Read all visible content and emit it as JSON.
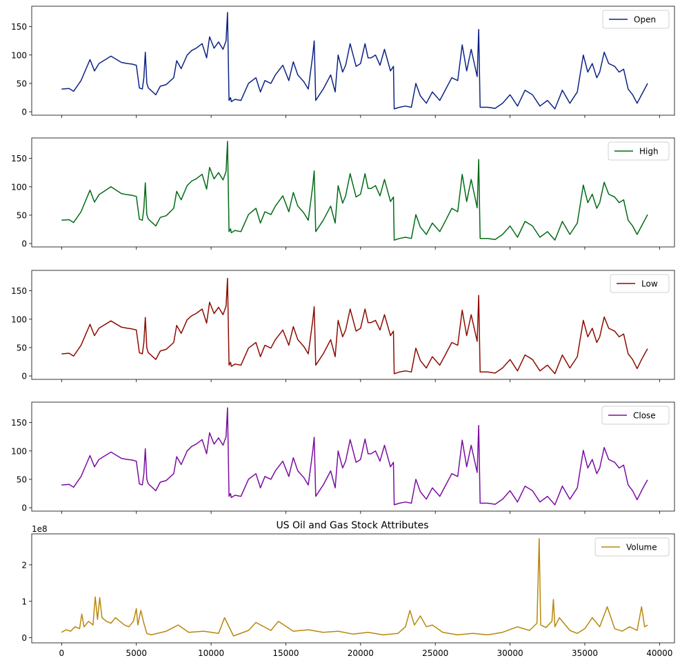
{
  "title": "US Oil and Gas Stock Attributes",
  "x_ticks": [
    0,
    5000,
    10000,
    15000,
    20000,
    25000,
    30000,
    35000,
    40000
  ],
  "volume_exponent_label": "1e8",
  "chart_data": [
    {
      "type": "line",
      "series": [
        {
          "name": "Open",
          "color": "#0b2283"
        }
      ],
      "xlim": [
        -2000,
        41000
      ],
      "ylim": [
        -6,
        186
      ],
      "y_ticks": [
        0,
        50,
        100,
        150
      ],
      "legend_position": "upper-right",
      "x_ticklabels_visible": false,
      "x": [
        0,
        500,
        800,
        1300,
        1900,
        2200,
        2500,
        3300,
        4000,
        4400,
        4700,
        5000,
        5200,
        5400,
        5500,
        5600,
        5700,
        5800,
        6300,
        6600,
        7000,
        7500,
        7700,
        8000,
        8400,
        8700,
        9000,
        9400,
        9700,
        9900,
        10200,
        10500,
        10800,
        11000,
        11100,
        11200,
        11300,
        11350,
        11600,
        12000,
        12500,
        13000,
        13300,
        13600,
        14000,
        14300,
        14800,
        15200,
        15500,
        15800,
        16200,
        16500,
        16800,
        16900,
        17000,
        17500,
        18000,
        18300,
        18500,
        18800,
        19000,
        19300,
        19700,
        20000,
        20300,
        20500,
        20700,
        21000,
        21300,
        21600,
        22000,
        22200,
        22250,
        22600,
        23000,
        23400,
        23700,
        24000,
        24400,
        24800,
        25300,
        25700,
        26100,
        26500,
        26800,
        27100,
        27400,
        27800,
        27900,
        28000,
        28500,
        29000,
        29500,
        30000,
        30500,
        31000,
        31500,
        32000,
        32500,
        33000,
        33500,
        34000,
        34500,
        34900,
        35200,
        35500,
        35800,
        36000,
        36300,
        36600,
        37000,
        37300,
        37600,
        37900,
        38200,
        38500,
        38800,
        39000,
        39200
      ],
      "y": [
        40,
        41,
        36,
        55,
        92,
        72,
        85,
        98,
        87,
        85,
        84,
        82,
        42,
        40,
        60,
        105,
        50,
        42,
        30,
        45,
        48,
        60,
        90,
        76,
        100,
        108,
        112,
        120,
        95,
        132,
        112,
        123,
        110,
        125,
        175,
        20,
        25,
        18,
        22,
        20,
        50,
        60,
        35,
        55,
        50,
        65,
        82,
        55,
        88,
        65,
        53,
        40,
        100,
        125,
        20,
        40,
        65,
        35,
        100,
        70,
        82,
        120,
        80,
        85,
        120,
        95,
        95,
        100,
        82,
        110,
        72,
        80,
        5,
        8,
        10,
        8,
        50,
        28,
        15,
        35,
        20,
        40,
        60,
        55,
        118,
        72,
        110,
        62,
        145,
        8,
        8,
        6,
        15,
        30,
        10,
        38,
        30,
        10,
        20,
        5,
        38,
        15,
        35,
        100,
        70,
        85,
        60,
        70,
        105,
        85,
        80,
        70,
        75,
        40,
        30,
        15,
        30,
        40,
        50
      ]
    },
    {
      "type": "line",
      "series": [
        {
          "name": "High",
          "color": "#006a14"
        }
      ],
      "xlim": [
        -2000,
        41000
      ],
      "ylim": [
        -6,
        186
      ],
      "y_ticks": [
        0,
        50,
        100,
        150
      ],
      "legend_position": "upper-right",
      "x_ticklabels_visible": false,
      "x": [
        0,
        500,
        800,
        1300,
        1900,
        2200,
        2500,
        3300,
        4000,
        4400,
        4700,
        5000,
        5200,
        5400,
        5500,
        5600,
        5700,
        5800,
        6300,
        6600,
        7000,
        7500,
        7700,
        8000,
        8400,
        8700,
        9000,
        9400,
        9700,
        9900,
        10200,
        10500,
        10800,
        11000,
        11100,
        11200,
        11300,
        11350,
        11600,
        12000,
        12500,
        13000,
        13300,
        13600,
        14000,
        14300,
        14800,
        15200,
        15500,
        15800,
        16200,
        16500,
        16800,
        16900,
        17000,
        17500,
        18000,
        18300,
        18500,
        18800,
        19000,
        19300,
        19700,
        20000,
        20300,
        20500,
        20700,
        21000,
        21300,
        21600,
        22000,
        22200,
        22250,
        22600,
        23000,
        23400,
        23700,
        24000,
        24400,
        24800,
        25300,
        25700,
        26100,
        26500,
        26800,
        27100,
        27400,
        27800,
        27900,
        28000,
        28500,
        29000,
        29500,
        30000,
        30500,
        31000,
        31500,
        32000,
        32500,
        33000,
        33500,
        34000,
        34500,
        34900,
        35200,
        35500,
        35800,
        36000,
        36300,
        36600,
        37000,
        37300,
        37600,
        37900,
        38200,
        38500,
        38800,
        39000,
        39200
      ],
      "y": [
        41,
        42,
        37,
        56,
        94,
        73,
        86,
        100,
        88,
        86,
        85,
        83,
        43,
        41,
        62,
        107,
        51,
        43,
        31,
        46,
        49,
        62,
        92,
        77,
        102,
        110,
        114,
        122,
        96,
        134,
        114,
        125,
        112,
        127,
        180,
        21,
        26,
        19,
        23,
        21,
        51,
        62,
        36,
        56,
        51,
        66,
        84,
        56,
        90,
        66,
        54,
        41,
        102,
        128,
        21,
        41,
        66,
        36,
        102,
        71,
        84,
        123,
        82,
        87,
        123,
        97,
        97,
        102,
        84,
        113,
        74,
        82,
        6,
        9,
        11,
        9,
        51,
        29,
        16,
        36,
        21,
        41,
        62,
        56,
        122,
        74,
        113,
        63,
        148,
        9,
        9,
        7,
        16,
        31,
        11,
        39,
        31,
        11,
        21,
        6,
        39,
        16,
        36,
        103,
        72,
        87,
        62,
        72,
        108,
        87,
        82,
        72,
        77,
        41,
        31,
        16,
        31,
        41,
        51
      ]
    },
    {
      "type": "line",
      "series": [
        {
          "name": "Low",
          "color": "#8b0b00"
        }
      ],
      "xlim": [
        -2000,
        41000
      ],
      "ylim": [
        -6,
        186
      ],
      "y_ticks": [
        0,
        50,
        100,
        150
      ],
      "legend_position": "upper-right",
      "x_ticklabels_visible": false,
      "x": [
        0,
        500,
        800,
        1300,
        1900,
        2200,
        2500,
        3300,
        4000,
        4400,
        4700,
        5000,
        5200,
        5400,
        5500,
        5600,
        5700,
        5800,
        6300,
        6600,
        7000,
        7500,
        7700,
        8000,
        8400,
        8700,
        9000,
        9400,
        9700,
        9900,
        10200,
        10500,
        10800,
        11000,
        11100,
        11200,
        11300,
        11350,
        11600,
        12000,
        12500,
        13000,
        13300,
        13600,
        14000,
        14300,
        14800,
        15200,
        15500,
        15800,
        16200,
        16500,
        16800,
        16900,
        17000,
        17500,
        18000,
        18300,
        18500,
        18800,
        19000,
        19300,
        19700,
        20000,
        20300,
        20500,
        20700,
        21000,
        21300,
        21600,
        22000,
        22200,
        22250,
        22600,
        23000,
        23400,
        23700,
        24000,
        24400,
        24800,
        25300,
        25700,
        26100,
        26500,
        26800,
        27100,
        27400,
        27800,
        27900,
        28000,
        28500,
        29000,
        29500,
        30000,
        30500,
        31000,
        31500,
        32000,
        32500,
        33000,
        33500,
        34000,
        34500,
        34900,
        35200,
        35500,
        35800,
        36000,
        36300,
        36600,
        37000,
        37300,
        37600,
        37900,
        38200,
        38500,
        38800,
        39000,
        39200
      ],
      "y": [
        39,
        40,
        35,
        54,
        91,
        71,
        84,
        97,
        86,
        84,
        83,
        81,
        41,
        39,
        59,
        103,
        49,
        41,
        29,
        44,
        47,
        59,
        89,
        75,
        99,
        106,
        110,
        118,
        93,
        130,
        110,
        121,
        108,
        123,
        172,
        19,
        24,
        17,
        21,
        19,
        49,
        59,
        34,
        54,
        49,
        64,
        81,
        54,
        87,
        64,
        52,
        39,
        98,
        122,
        19,
        39,
        64,
        34,
        98,
        69,
        81,
        118,
        79,
        84,
        118,
        94,
        94,
        98,
        81,
        108,
        71,
        79,
        4,
        7,
        9,
        7,
        49,
        27,
        14,
        34,
        19,
        39,
        59,
        54,
        116,
        71,
        108,
        61,
        142,
        7,
        7,
        5,
        14,
        29,
        9,
        37,
        29,
        9,
        19,
        4,
        37,
        14,
        34,
        98,
        69,
        84,
        59,
        69,
        104,
        84,
        79,
        69,
        74,
        39,
        29,
        13,
        29,
        39,
        48
      ]
    },
    {
      "type": "line",
      "series": [
        {
          "name": "Close",
          "color": "#7a0ca0"
        }
      ],
      "xlim": [
        -2000,
        41000
      ],
      "ylim": [
        -6,
        186
      ],
      "y_ticks": [
        0,
        50,
        100,
        150
      ],
      "legend_position": "upper-right",
      "x_ticklabels_visible": false,
      "x": [
        0,
        500,
        800,
        1300,
        1900,
        2200,
        2500,
        3300,
        4000,
        4400,
        4700,
        5000,
        5200,
        5400,
        5500,
        5600,
        5700,
        5800,
        6300,
        6600,
        7000,
        7500,
        7700,
        8000,
        8400,
        8700,
        9000,
        9400,
        9700,
        9900,
        10200,
        10500,
        10800,
        11000,
        11100,
        11200,
        11300,
        11350,
        11600,
        12000,
        12500,
        13000,
        13300,
        13600,
        14000,
        14300,
        14800,
        15200,
        15500,
        15800,
        16200,
        16500,
        16800,
        16900,
        17000,
        17500,
        18000,
        18300,
        18500,
        18800,
        19000,
        19300,
        19700,
        20000,
        20300,
        20500,
        20700,
        21000,
        21300,
        21600,
        22000,
        22200,
        22250,
        22600,
        23000,
        23400,
        23700,
        24000,
        24400,
        24800,
        25300,
        25700,
        26100,
        26500,
        26800,
        27100,
        27400,
        27800,
        27900,
        28000,
        28500,
        29000,
        29500,
        30000,
        30500,
        31000,
        31500,
        32000,
        32500,
        33000,
        33500,
        34000,
        34500,
        34900,
        35200,
        35500,
        35800,
        36000,
        36300,
        36600,
        37000,
        37300,
        37600,
        37900,
        38200,
        38500,
        38800,
        39000,
        39200
      ],
      "y": [
        40,
        41,
        36,
        55,
        92,
        72,
        85,
        98,
        87,
        85,
        84,
        82,
        42,
        40,
        60,
        104,
        50,
        42,
        30,
        45,
        48,
        60,
        90,
        76,
        100,
        108,
        112,
        120,
        95,
        132,
        112,
        123,
        110,
        125,
        176,
        20,
        25,
        18,
        22,
        20,
        50,
        60,
        35,
        55,
        50,
        65,
        82,
        55,
        88,
        65,
        53,
        40,
        100,
        124,
        20,
        40,
        65,
        35,
        100,
        70,
        82,
        120,
        80,
        85,
        121,
        95,
        95,
        100,
        82,
        110,
        72,
        80,
        5,
        8,
        10,
        8,
        50,
        28,
        15,
        35,
        20,
        40,
        60,
        55,
        119,
        72,
        110,
        62,
        145,
        8,
        8,
        6,
        15,
        30,
        10,
        38,
        30,
        10,
        20,
        5,
        38,
        15,
        35,
        101,
        70,
        85,
        60,
        70,
        106,
        85,
        80,
        70,
        75,
        40,
        30,
        14,
        30,
        40,
        49
      ]
    },
    {
      "type": "line",
      "title": "US Oil and Gas Stock Attributes",
      "series": [
        {
          "name": "Volume",
          "color": "#b8860b"
        }
      ],
      "xlim": [
        -2000,
        41000
      ],
      "ylim": [
        -0.14,
        2.85
      ],
      "y_unit": "1e8",
      "y_ticks": [
        0,
        1,
        2
      ],
      "legend_position": "upper-right",
      "x_ticklabels_visible": true,
      "x": [
        0,
        300,
        600,
        900,
        1200,
        1350,
        1500,
        1800,
        2100,
        2250,
        2400,
        2550,
        2700,
        3000,
        3300,
        3600,
        3900,
        4200,
        4500,
        4800,
        5000,
        5100,
        5300,
        5500,
        5700,
        6000,
        7000,
        7800,
        8500,
        9500,
        10500,
        10900,
        11500,
        12500,
        13000,
        14000,
        14500,
        15500,
        16500,
        17500,
        18500,
        19500,
        20500,
        21500,
        22500,
        23000,
        23300,
        23600,
        24000,
        24400,
        24800,
        25500,
        26500,
        27500,
        28500,
        29500,
        30500,
        31300,
        31800,
        31950,
        32050,
        32400,
        32800,
        32900,
        33000,
        33300,
        34000,
        34500,
        35000,
        35500,
        36000,
        36500,
        37000,
        37500,
        38000,
        38500,
        38800,
        39000,
        39200
      ],
      "y": [
        0.15,
        0.22,
        0.18,
        0.3,
        0.25,
        0.65,
        0.3,
        0.45,
        0.35,
        1.12,
        0.5,
        1.1,
        0.55,
        0.45,
        0.4,
        0.55,
        0.45,
        0.35,
        0.3,
        0.45,
        0.8,
        0.35,
        0.75,
        0.4,
        0.12,
        0.08,
        0.18,
        0.35,
        0.15,
        0.18,
        0.12,
        0.55,
        0.05,
        0.2,
        0.42,
        0.2,
        0.45,
        0.18,
        0.22,
        0.15,
        0.18,
        0.1,
        0.15,
        0.08,
        0.12,
        0.3,
        0.75,
        0.35,
        0.6,
        0.3,
        0.35,
        0.15,
        0.08,
        0.12,
        0.08,
        0.15,
        0.3,
        0.2,
        0.4,
        2.72,
        0.35,
        0.28,
        0.45,
        1.05,
        0.3,
        0.55,
        0.2,
        0.12,
        0.25,
        0.55,
        0.3,
        0.85,
        0.25,
        0.18,
        0.3,
        0.2,
        0.85,
        0.3,
        0.35
      ]
    }
  ]
}
